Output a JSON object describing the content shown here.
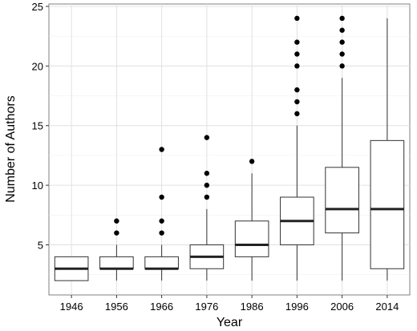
{
  "chart_data": {
    "type": "boxplot",
    "title": "",
    "xlabel": "Year",
    "ylabel": "Number of Authors",
    "ylim": [
      0.8,
      25.2
    ],
    "yticks": [
      5,
      10,
      15,
      20,
      25
    ],
    "grid": true,
    "categories": [
      "1946",
      "1956",
      "1966",
      "1976",
      "1986",
      "1996",
      "2006",
      "2014"
    ],
    "boxes": [
      {
        "category": "1946",
        "whisker_low": 2,
        "q1": 2,
        "median": 3,
        "q3": 4,
        "whisker_high": 4,
        "outliers": []
      },
      {
        "category": "1956",
        "whisker_low": 2,
        "q1": 3,
        "median": 3,
        "q3": 4,
        "whisker_high": 5,
        "outliers": [
          6,
          7
        ]
      },
      {
        "category": "1966",
        "whisker_low": 2,
        "q1": 3,
        "median": 3,
        "q3": 4,
        "whisker_high": 5,
        "outliers": [
          6,
          7,
          9,
          13
        ]
      },
      {
        "category": "1976",
        "whisker_low": 2,
        "q1": 3,
        "median": 4,
        "q3": 5,
        "whisker_high": 8,
        "outliers": [
          9,
          10,
          11,
          14
        ]
      },
      {
        "category": "1986",
        "whisker_low": 2,
        "q1": 4,
        "median": 5,
        "q3": 7,
        "whisker_high": 11,
        "outliers": [
          12
        ]
      },
      {
        "category": "1996",
        "whisker_low": 2,
        "q1": 5,
        "median": 7,
        "q3": 9,
        "whisker_high": 15,
        "outliers": [
          16,
          17,
          18,
          20,
          21,
          22,
          24
        ]
      },
      {
        "category": "2006",
        "whisker_low": 2,
        "q1": 6,
        "median": 8,
        "q3": 11.5,
        "whisker_high": 19,
        "outliers": [
          20,
          21,
          22,
          23,
          24
        ]
      },
      {
        "category": "2014",
        "whisker_low": 2,
        "q1": 3,
        "median": 8,
        "q3": 13.75,
        "whisker_high": 24,
        "outliers": []
      }
    ]
  }
}
